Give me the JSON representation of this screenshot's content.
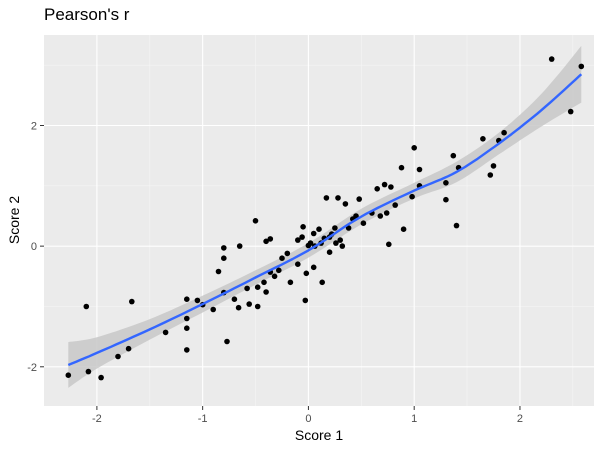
{
  "chart_data": {
    "type": "scatter",
    "title": "Pearson's r",
    "xlabel": "Score 1",
    "ylabel": "Score 2",
    "xlim": [
      -2.5,
      2.7
    ],
    "ylim": [
      -2.65,
      3.5
    ],
    "x_ticks": [
      -2,
      -1,
      0,
      1,
      2
    ],
    "x_tick_labels": [
      "-2",
      "-1",
      "0",
      "1",
      "2"
    ],
    "y_ticks": [
      -2,
      0,
      2
    ],
    "y_tick_labels": [
      "-2",
      "0",
      "2"
    ],
    "grid": true,
    "points": [
      {
        "x": -2.27,
        "y": -2.14
      },
      {
        "x": -2.1,
        "y": -1.0
      },
      {
        "x": -2.08,
        "y": -2.08
      },
      {
        "x": -1.96,
        "y": -2.18
      },
      {
        "x": -1.8,
        "y": -1.83
      },
      {
        "x": -1.7,
        "y": -1.7
      },
      {
        "x": -1.67,
        "y": -0.92
      },
      {
        "x": -1.35,
        "y": -1.43
      },
      {
        "x": -1.15,
        "y": -1.72
      },
      {
        "x": -1.15,
        "y": -1.36
      },
      {
        "x": -1.15,
        "y": -1.2
      },
      {
        "x": -1.15,
        "y": -0.88
      },
      {
        "x": -1.05,
        "y": -0.9
      },
      {
        "x": -1.0,
        "y": -0.97
      },
      {
        "x": -0.9,
        "y": -1.05
      },
      {
        "x": -0.85,
        "y": -0.42
      },
      {
        "x": -0.8,
        "y": -0.03
      },
      {
        "x": -0.8,
        "y": -0.2
      },
      {
        "x": -0.8,
        "y": -0.77
      },
      {
        "x": -0.77,
        "y": -1.58
      },
      {
        "x": -0.7,
        "y": -0.88
      },
      {
        "x": -0.66,
        "y": -1.02
      },
      {
        "x": -0.65,
        "y": 0.0
      },
      {
        "x": -0.58,
        "y": -0.7
      },
      {
        "x": -0.56,
        "y": -0.96
      },
      {
        "x": -0.5,
        "y": 0.42
      },
      {
        "x": -0.48,
        "y": -0.68
      },
      {
        "x": -0.48,
        "y": -1.0
      },
      {
        "x": -0.42,
        "y": -0.6
      },
      {
        "x": -0.4,
        "y": -0.76
      },
      {
        "x": -0.4,
        "y": 0.08
      },
      {
        "x": -0.36,
        "y": -0.43
      },
      {
        "x": -0.36,
        "y": 0.12
      },
      {
        "x": -0.32,
        "y": -0.5
      },
      {
        "x": -0.28,
        "y": -0.4
      },
      {
        "x": -0.25,
        "y": -0.2
      },
      {
        "x": -0.2,
        "y": -0.12
      },
      {
        "x": -0.17,
        "y": -0.6
      },
      {
        "x": -0.1,
        "y": 0.1
      },
      {
        "x": -0.1,
        "y": -0.3
      },
      {
        "x": -0.06,
        "y": 0.15
      },
      {
        "x": -0.05,
        "y": 0.32
      },
      {
        "x": -0.03,
        "y": -0.9
      },
      {
        "x": -0.02,
        "y": -0.45
      },
      {
        "x": 0.0,
        "y": 0.01
      },
      {
        "x": 0.02,
        "y": 0.05
      },
      {
        "x": 0.05,
        "y": 0.21
      },
      {
        "x": 0.05,
        "y": -0.35
      },
      {
        "x": 0.06,
        "y": 0.0
      },
      {
        "x": 0.1,
        "y": 0.28
      },
      {
        "x": 0.12,
        "y": 0.05
      },
      {
        "x": 0.13,
        "y": -0.6
      },
      {
        "x": 0.15,
        "y": 0.13
      },
      {
        "x": 0.17,
        "y": 0.8
      },
      {
        "x": 0.2,
        "y": -0.1
      },
      {
        "x": 0.2,
        "y": 0.15
      },
      {
        "x": 0.22,
        "y": 0.2
      },
      {
        "x": 0.25,
        "y": 0.3
      },
      {
        "x": 0.26,
        "y": 0.05
      },
      {
        "x": 0.28,
        "y": 0.8
      },
      {
        "x": 0.3,
        "y": 0.1
      },
      {
        "x": 0.32,
        "y": 0.0
      },
      {
        "x": 0.35,
        "y": 0.7
      },
      {
        "x": 0.38,
        "y": 0.3
      },
      {
        "x": 0.42,
        "y": 0.45
      },
      {
        "x": 0.45,
        "y": 0.5
      },
      {
        "x": 0.48,
        "y": 0.78
      },
      {
        "x": 0.52,
        "y": 0.38
      },
      {
        "x": 0.6,
        "y": 0.55
      },
      {
        "x": 0.65,
        "y": 0.95
      },
      {
        "x": 0.68,
        "y": 0.5
      },
      {
        "x": 0.72,
        "y": 1.02
      },
      {
        "x": 0.74,
        "y": 0.55
      },
      {
        "x": 0.76,
        "y": 0.03
      },
      {
        "x": 0.78,
        "y": 0.98
      },
      {
        "x": 0.82,
        "y": 0.68
      },
      {
        "x": 0.88,
        "y": 1.3
      },
      {
        "x": 0.9,
        "y": 0.28
      },
      {
        "x": 0.98,
        "y": 0.82
      },
      {
        "x": 1.0,
        "y": 1.63
      },
      {
        "x": 1.05,
        "y": 1.0
      },
      {
        "x": 1.05,
        "y": 1.27
      },
      {
        "x": 1.3,
        "y": 0.77
      },
      {
        "x": 1.3,
        "y": 1.05
      },
      {
        "x": 1.37,
        "y": 1.5
      },
      {
        "x": 1.4,
        "y": 0.34
      },
      {
        "x": 1.42,
        "y": 1.3
      },
      {
        "x": 1.65,
        "y": 1.78
      },
      {
        "x": 1.72,
        "y": 1.18
      },
      {
        "x": 1.75,
        "y": 1.33
      },
      {
        "x": 1.8,
        "y": 1.75
      },
      {
        "x": 1.85,
        "y": 1.88
      },
      {
        "x": 2.3,
        "y": 3.1
      },
      {
        "x": 2.48,
        "y": 2.23
      },
      {
        "x": 2.58,
        "y": 2.98
      }
    ],
    "smooth": {
      "x": [
        -2.27,
        -2.0,
        -1.5,
        -1.0,
        -0.5,
        0.0,
        0.5,
        1.0,
        1.4,
        1.8,
        2.2,
        2.58
      ],
      "y": [
        -1.97,
        -1.77,
        -1.38,
        -0.96,
        -0.52,
        -0.07,
        0.49,
        0.92,
        1.23,
        1.7,
        2.25,
        2.85
      ],
      "lower": [
        -2.35,
        -2.03,
        -1.55,
        -1.1,
        -0.64,
        -0.19,
        0.36,
        0.79,
        1.06,
        1.52,
        1.98,
        2.38
      ],
      "upper": [
        -1.59,
        -1.51,
        -1.21,
        -0.82,
        -0.4,
        0.05,
        0.62,
        1.05,
        1.4,
        1.88,
        2.52,
        3.32
      ]
    },
    "colors": {
      "panel_bg": "#ebebeb",
      "grid_major": "#ffffff",
      "grid_minor": "#f5f5f5",
      "point": "#000000",
      "line": "#3366ff",
      "ribbon": "#c8c8c8"
    }
  }
}
